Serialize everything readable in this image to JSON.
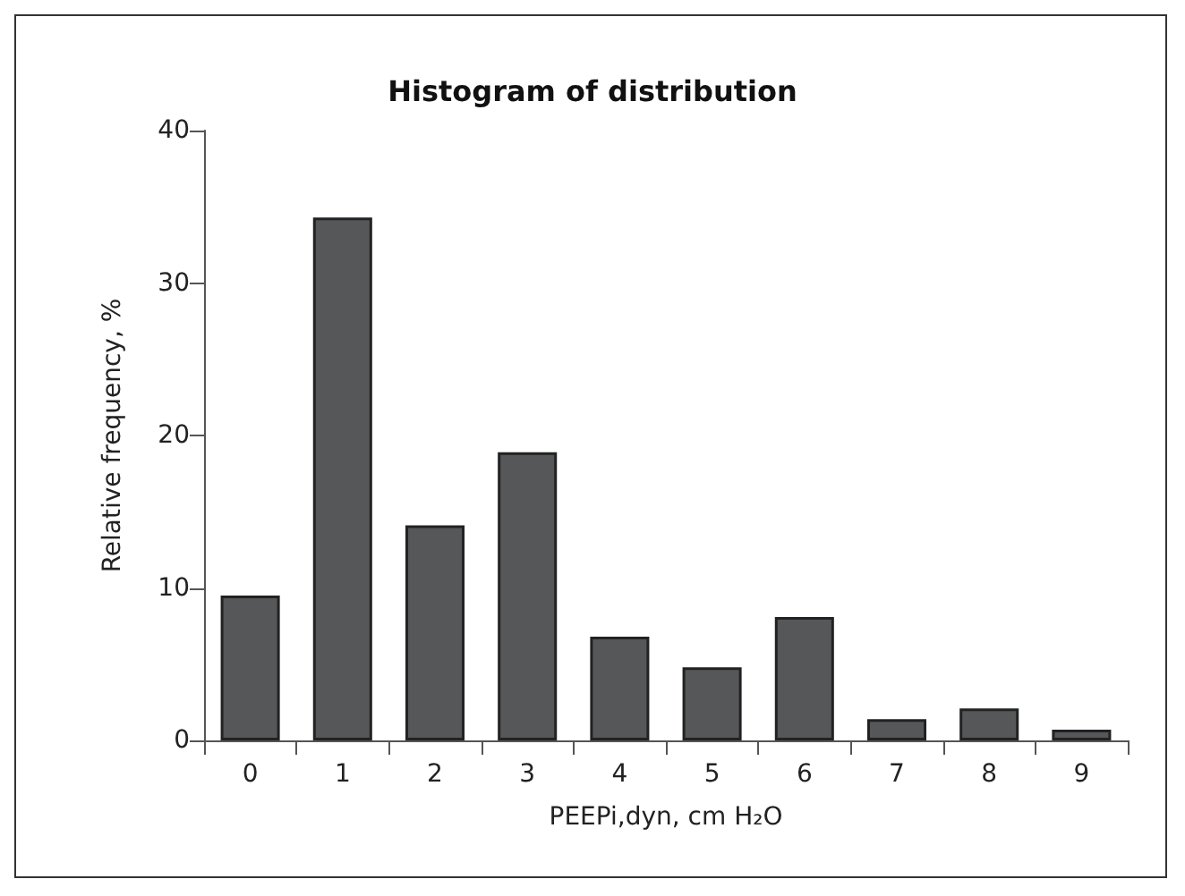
{
  "chart_data": {
    "type": "bar",
    "title": "Histogram of distribution",
    "xlabel": "PEEPi,dyn, cm H₂O",
    "ylabel": "Relative frequency, %",
    "categories": [
      "0",
      "1",
      "2",
      "3",
      "4",
      "5",
      "6",
      "7",
      "8",
      "9"
    ],
    "values": [
      9.5,
      34.3,
      14.1,
      18.9,
      6.8,
      4.8,
      8.1,
      1.4,
      2.1,
      0.7
    ],
    "color": "#555759",
    "ylim": [
      0,
      40
    ],
    "yticks": [
      0,
      10,
      20,
      30,
      40
    ],
    "grid": false
  }
}
